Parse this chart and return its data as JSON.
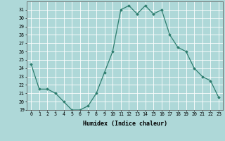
{
  "x": [
    0,
    1,
    2,
    3,
    4,
    5,
    6,
    7,
    8,
    9,
    10,
    11,
    12,
    13,
    14,
    15,
    16,
    17,
    18,
    19,
    20,
    21,
    22,
    23
  ],
  "y": [
    24.5,
    21.5,
    21.5,
    21.0,
    20.0,
    19.0,
    19.0,
    19.5,
    21.0,
    23.5,
    26.0,
    31.0,
    31.5,
    30.5,
    31.5,
    30.5,
    31.0,
    28.0,
    26.5,
    26.0,
    24.0,
    23.0,
    22.5,
    20.5
  ],
  "xlabel": "Humidex (Indice chaleur)",
  "ylim": [
    19,
    32
  ],
  "xlim": [
    -0.5,
    23.5
  ],
  "yticks": [
    19,
    20,
    21,
    22,
    23,
    24,
    25,
    26,
    27,
    28,
    29,
    30,
    31
  ],
  "xticks": [
    0,
    1,
    2,
    3,
    4,
    5,
    6,
    7,
    8,
    9,
    10,
    11,
    12,
    13,
    14,
    15,
    16,
    17,
    18,
    19,
    20,
    21,
    22,
    23
  ],
  "line_color": "#2e7d6e",
  "marker_color": "#2e7d6e",
  "bg_color": "#aed8d8",
  "grid_color": "#ffffff",
  "xlabel_fontsize": 6.0,
  "tick_fontsize": 4.8
}
